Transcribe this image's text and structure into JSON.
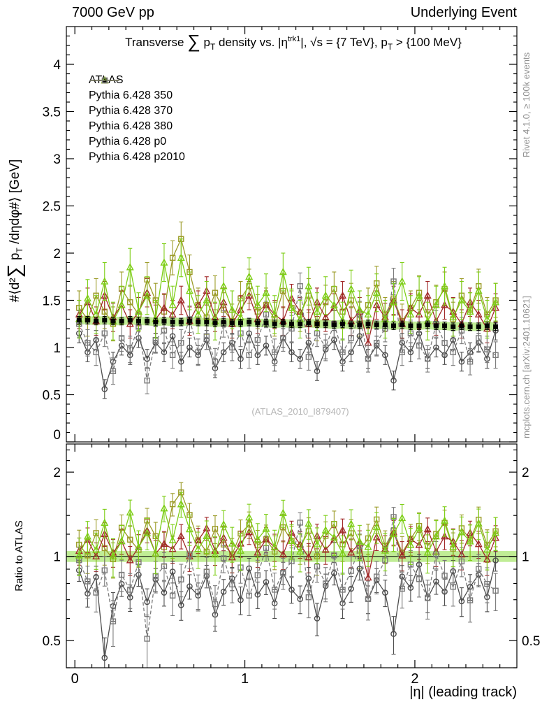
{
  "header": {
    "left": "7000 GeV pp",
    "right": "Underlying Event"
  },
  "title": {
    "t1": "Transverse ",
    "sum": "∑",
    "t2": " p",
    "t2sub": "T",
    "t3": " density vs. |η",
    "t3sup": "trk1",
    "t4": "|, √s = {7 TeV}, p",
    "t4sub": "T",
    "t5": " > {100 MeV}"
  },
  "ylabel": {
    "t1": "#⟨d²",
    "sum": "∑",
    "t2": " p",
    "sub": "T",
    "t3": " /dηdφ#⟩ [GeV]"
  },
  "ratio_ylabel": "Ratio to ATLAS",
  "xlabel": "|η| (leading track)",
  "watermark": "(ATLAS_2010_I879407)",
  "credits": {
    "top": "Rivet 4.1.0, ≥ 100k events",
    "bottom": "mcplots.cern.ch [arXiv:2401.10621]"
  },
  "chart_data": {
    "type": "scatter",
    "title": "Transverse Sum pT density vs. |eta_trk1|, sqrt(s) = 7 TeV, pT > 100 MeV",
    "xlabel": "|eta| (leading track)",
    "ylabel": "#<d2 Sum pT /deta dphi#> [GeV]",
    "x": [
      0.025,
      0.075,
      0.125,
      0.175,
      0.225,
      0.275,
      0.325,
      0.375,
      0.425,
      0.475,
      0.525,
      0.575,
      0.625,
      0.675,
      0.725,
      0.775,
      0.825,
      0.875,
      0.925,
      0.975,
      1.025,
      1.075,
      1.125,
      1.175,
      1.225,
      1.275,
      1.325,
      1.375,
      1.425,
      1.475,
      1.525,
      1.575,
      1.625,
      1.675,
      1.725,
      1.775,
      1.825,
      1.875,
      1.925,
      1.975,
      2.025,
      2.075,
      2.125,
      2.175,
      2.225,
      2.275,
      2.325,
      2.375,
      2.425,
      2.475
    ],
    "series": [
      {
        "name": "ATLAS",
        "color": "#000000",
        "marker": "square-filled",
        "line": "none",
        "err": 0.04,
        "values": [
          1.29,
          1.29,
          1.28,
          1.29,
          1.28,
          1.28,
          1.29,
          1.28,
          1.28,
          1.27,
          1.28,
          1.27,
          1.27,
          1.28,
          1.27,
          1.27,
          1.26,
          1.27,
          1.26,
          1.26,
          1.27,
          1.26,
          1.26,
          1.25,
          1.26,
          1.25,
          1.25,
          1.26,
          1.25,
          1.25,
          1.24,
          1.25,
          1.24,
          1.24,
          1.25,
          1.24,
          1.24,
          1.23,
          1.24,
          1.23,
          1.23,
          1.24,
          1.23,
          1.23,
          1.22,
          1.23,
          1.22,
          1.22,
          1.23,
          1.22
        ]
      },
      {
        "name": "Pythia 6.428 350",
        "color": "#9b9b27",
        "marker": "square-open",
        "line": "solid",
        "err": 0.18,
        "values": [
          1.42,
          1.3,
          1.55,
          1.38,
          1.25,
          1.62,
          1.48,
          1.35,
          1.72,
          1.5,
          1.38,
          1.95,
          2.15,
          1.8,
          1.45,
          1.32,
          1.58,
          1.4,
          1.28,
          1.52,
          1.65,
          1.38,
          1.45,
          1.3,
          1.6,
          1.42,
          1.35,
          1.55,
          1.25,
          1.48,
          1.62,
          1.38,
          1.5,
          1.3,
          1.45,
          1.68,
          1.35,
          1.52,
          1.28,
          1.42,
          1.58,
          1.35,
          1.48,
          1.62,
          1.3,
          1.55,
          1.4,
          1.65,
          1.35,
          1.5
        ]
      },
      {
        "name": "Pythia 6.428 370",
        "color": "#a12828",
        "marker": "triangle-open",
        "line": "solid",
        "err": 0.15,
        "values": [
          1.35,
          1.48,
          1.28,
          1.55,
          1.32,
          1.45,
          1.25,
          1.38,
          1.58,
          1.3,
          1.42,
          1.35,
          1.5,
          1.28,
          1.45,
          1.6,
          1.32,
          1.48,
          1.25,
          1.4,
          1.55,
          1.3,
          1.45,
          1.35,
          1.28,
          1.52,
          1.38,
          1.25,
          1.48,
          1.32,
          1.42,
          1.55,
          1.28,
          1.38,
          1.05,
          1.45,
          1.32,
          1.5,
          1.25,
          1.42,
          1.35,
          1.55,
          1.28,
          1.45,
          1.38,
          1.25,
          1.48,
          1.35,
          1.2,
          1.42
        ]
      },
      {
        "name": "Pythia 6.428 380",
        "color": "#7dce16",
        "marker": "triangle-open",
        "line": "solid",
        "err": 0.2,
        "values": [
          1.3,
          1.52,
          1.35,
          1.7,
          1.28,
          1.45,
          1.85,
          1.38,
          1.55,
          1.3,
          1.9,
          1.45,
          1.95,
          1.6,
          1.35,
          1.5,
          1.28,
          1.65,
          1.4,
          1.32,
          1.75,
          1.45,
          1.58,
          1.35,
          1.8,
          1.42,
          1.3,
          1.65,
          1.38,
          1.55,
          1.45,
          1.28,
          1.62,
          1.4,
          1.35,
          1.58,
          1.3,
          1.48,
          1.7,
          1.35,
          1.55,
          1.28,
          1.45,
          1.65,
          1.32,
          1.5,
          1.38,
          1.6,
          1.3,
          1.48
        ]
      },
      {
        "name": "Pythia 6.428 p0",
        "color": "#4d4d4d",
        "marker": "circle-open",
        "line": "solid",
        "err": 0.1,
        "values": [
          1.15,
          0.95,
          1.08,
          0.56,
          0.85,
          1.02,
          0.92,
          1.1,
          0.88,
          1.05,
          0.95,
          1.12,
          0.85,
          1.0,
          0.92,
          1.08,
          0.78,
          0.95,
          1.05,
          0.88,
          1.15,
          0.92,
          1.02,
          0.85,
          1.1,
          0.95,
          0.88,
          1.05,
          0.75,
          0.98,
          1.08,
          0.85,
          0.95,
          1.12,
          0.88,
          1.02,
          0.92,
          0.65,
          1.05,
          0.95,
          1.15,
          0.88,
          1.0,
          0.92,
          1.08,
          0.85,
          0.95,
          1.05,
          0.88,
          1.18
        ]
      },
      {
        "name": "Pythia 6.428 p2010",
        "color": "#7a7a7a",
        "marker": "square-open",
        "line": "dashed",
        "err": 0.14,
        "values": [
          1.25,
          1.05,
          0.95,
          1.15,
          0.75,
          1.1,
          0.98,
          1.22,
          0.65,
          1.08,
          1.18,
          0.92,
          1.05,
          1.3,
          0.95,
          1.12,
          0.85,
          1.25,
          1.0,
          1.15,
          0.92,
          1.08,
          1.35,
          0.95,
          1.1,
          1.2,
          1.65,
          0.9,
          1.15,
          1.0,
          1.25,
          0.95,
          1.1,
          1.35,
          0.88,
          1.05,
          1.2,
          1.7,
          0.95,
          1.15,
          1.02,
          0.88,
          1.25,
          1.05,
          0.95,
          1.18,
          0.85,
          1.1,
          0.98,
          0.92
        ]
      }
    ],
    "main_axis": {
      "xlim": [
        -0.05,
        2.6
      ],
      "ylim": [
        0,
        4.4
      ],
      "yticks": [
        0,
        0.5,
        1,
        1.5,
        2,
        2.5,
        3,
        3.5,
        4
      ],
      "xticks": [
        0,
        1,
        2
      ]
    },
    "ratio_axis": {
      "scale": "log",
      "ylim": [
        0.4,
        2.52
      ],
      "yticks": [
        0.5,
        1,
        2
      ],
      "minor_ticks": [
        0.4,
        0.6,
        0.7,
        0.8,
        0.9,
        1.2,
        1.4,
        1.6,
        1.8,
        2.2,
        2.4
      ]
    },
    "band": {
      "halfwidth": 0.045,
      "color": "#b0e87a"
    },
    "legend_position": "top-left",
    "grid": false
  }
}
